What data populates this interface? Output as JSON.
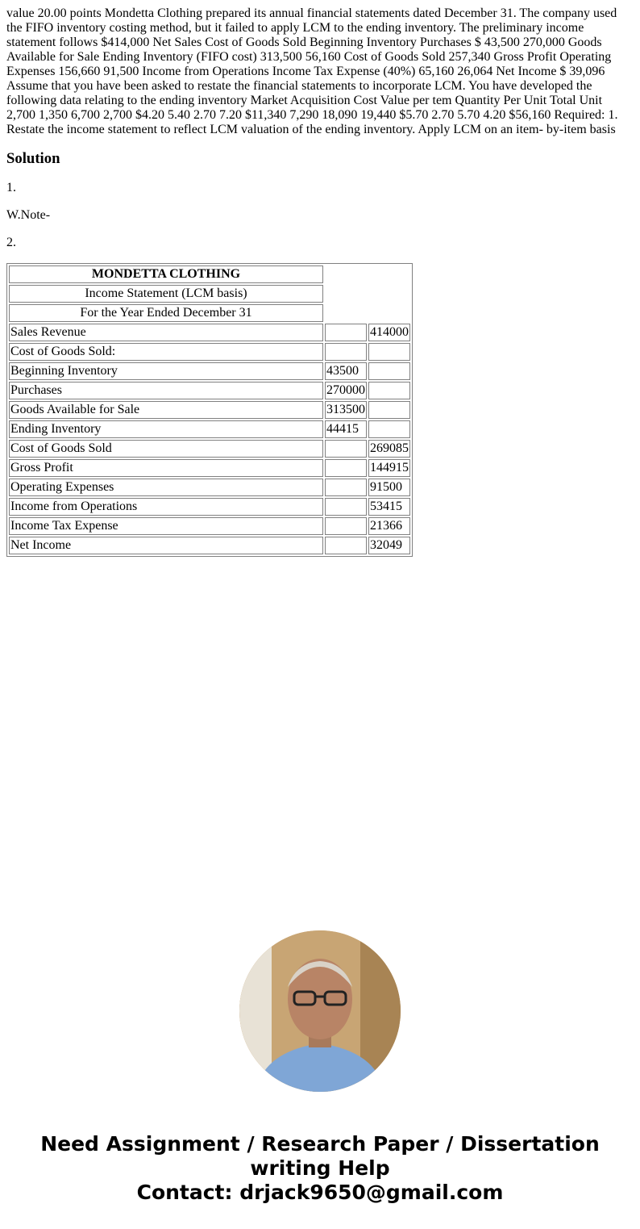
{
  "question": "value 20.00 points Mondetta Clothing prepared its annual financial statements dated December 31. The company used the FIFO inventory costing method, but it failed to apply LCM to the ending inventory. The preliminary income statement follows $414,000 Net Sales Cost of Goods Sold Beginning Inventory Purchases $ 43,500 270,000 Goods Available for Sale Ending Inventory (FIFO cost) 313,500 56,160 Cost of Goods Sold 257,340 Gross Profit Operating Expenses 156,660 91,500 Income from Operations Income Tax Expense (40%) 65,160 26,064 Net Income $ 39,096 Assume that you have been asked to restate the financial statements to incorporate LCM. You have developed the following data relating to the ending inventory Market Acquisition Cost Value per tem Quantity Per Unit Total Unit 2,700 1,350 6,700 2,700 $4.20 5.40 2.70 7.20 $11,340 7,290 18,090 19,440 $5.70 2.70 5.70 4.20 $56,160 Required: 1. Restate the income statement to reflect LCM valuation of the ending inventory. Apply LCM on an item- by-item basis",
  "solution_heading": "Solution",
  "step1": "1.",
  "note": "W.Note-",
  "step2": "2.",
  "statement": {
    "company": "MONDETTA CLOTHING",
    "title": "Income Statement (LCM basis)",
    "period": "For the Year Ended December 31",
    "rows": [
      {
        "label": "Sales Revenue",
        "col1": "",
        "col2": "414000"
      },
      {
        "label": "Cost of Goods Sold:",
        "col1": "",
        "col2": ""
      },
      {
        "label": "Beginning Inventory",
        "col1": "43500",
        "col2": ""
      },
      {
        "label": "Purchases",
        "col1": "270000",
        "col2": ""
      },
      {
        "label": "Goods Available for Sale",
        "col1": "313500",
        "col2": ""
      },
      {
        "label": "Ending Inventory",
        "col1": "44415",
        "col2": ""
      },
      {
        "label": "Cost of Goods Sold",
        "col1": "",
        "col2": "269085"
      },
      {
        "label": "Gross Profit",
        "col1": "",
        "col2": "144915"
      },
      {
        "label": "Operating Expenses",
        "col1": "",
        "col2": "91500"
      },
      {
        "label": "Income from Operations",
        "col1": "",
        "col2": "53415"
      },
      {
        "label": "Income Tax Expense",
        "col1": "",
        "col2": "21366"
      },
      {
        "label": "Net Income",
        "col1": "",
        "col2": "32049"
      }
    ]
  },
  "footer": {
    "line1": "Need Assignment / Research Paper / Dissertation writing Help",
    "line2": "Contact: drjack9650@gmail.com"
  }
}
